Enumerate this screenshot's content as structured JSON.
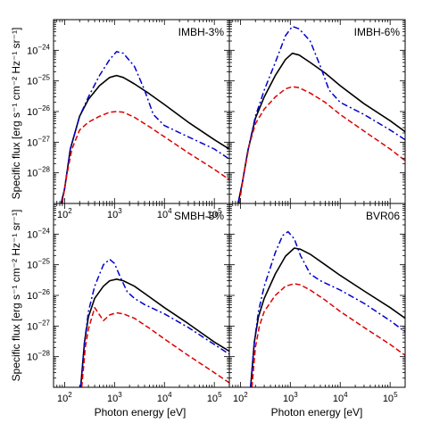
{
  "figure": {
    "xlabel": "Photon energy [eV]",
    "ylabel": "Specific flux [erg s⁻¹ cm⁻² Hz⁻¹ sr⁻¹]"
  },
  "chart_data": [
    {
      "type": "line",
      "panel_label": "IMBH-3%",
      "xscale": "log",
      "yscale": "log",
      "xlim": [
        60,
        200000
      ],
      "ylim": [
        1e-29,
        1e-23
      ],
      "xlabel": "",
      "ylabel": "Specific flux [erg s⁻¹ cm⁻² Hz⁻¹ sr⁻¹]",
      "x_ticks": [
        "10^2",
        "10^3",
        "10^4",
        "10^5"
      ],
      "y_ticks": [
        "10^-24",
        "10^-25",
        "10^-26",
        "10^-27",
        "10^-28"
      ],
      "series": [
        {
          "style": "solid",
          "color": "#000000",
          "x": [
            85,
            100,
            130,
            200,
            300,
            500,
            800,
            1100,
            1500,
            2500,
            5000,
            10000,
            30000,
            100000,
            200000
          ],
          "y": [
            1e-29,
            3e-29,
            6e-28,
            7e-27,
            2.5e-26,
            7e-26,
            1.3e-25,
            1.5e-25,
            1.3e-25,
            8e-26,
            3.8e-26,
            1.7e-26,
            4.5e-27,
            1.2e-27,
            6e-28
          ]
        },
        {
          "style": "dashdot",
          "color": "#0000cc",
          "x": [
            85,
            100,
            130,
            200,
            300,
            500,
            800,
            1100,
            1500,
            2500,
            4000,
            6000,
            10000,
            30000,
            100000,
            200000
          ],
          "y": [
            1e-29,
            3e-29,
            6e-28,
            7e-27,
            3e-26,
            1.5e-25,
            5e-25,
            9e-25,
            8e-25,
            3e-25,
            5e-26,
            8e-27,
            3.5e-27,
            1.5e-27,
            6e-28,
            2.8e-28
          ]
        },
        {
          "style": "dashed",
          "color": "#dd0000",
          "x": [
            90,
            110,
            140,
            200,
            300,
            500,
            800,
            1100,
            1500,
            2500,
            5000,
            10000,
            30000,
            100000,
            200000
          ],
          "y": [
            1e-29,
            8e-29,
            6e-28,
            2.5e-27,
            4.5e-27,
            7e-27,
            9.5e-27,
            1e-26,
            9.5e-27,
            6.5e-27,
            3.2e-27,
            1.5e-27,
            4.5e-28,
            1.3e-28,
            6e-29
          ]
        }
      ]
    },
    {
      "type": "line",
      "panel_label": "IMBH-6%",
      "xscale": "log",
      "yscale": "log",
      "xlim": [
        60,
        200000
      ],
      "ylim": [
        1e-29,
        1e-23
      ],
      "xlabel": "",
      "ylabel": "",
      "x_ticks": [],
      "y_ticks": [],
      "series": [
        {
          "style": "solid",
          "color": "#000000",
          "x": [
            90,
            110,
            140,
            200,
            300,
            500,
            800,
            1100,
            1500,
            2500,
            5000,
            10000,
            30000,
            100000,
            200000
          ],
          "y": [
            1e-29,
            5e-29,
            5e-28,
            6e-27,
            3e-26,
            1.5e-25,
            5e-25,
            8e-25,
            7e-25,
            4e-25,
            1.8e-25,
            7e-26,
            1.8e-26,
            5e-27,
            2.2e-27
          ]
        },
        {
          "style": "dashdot",
          "color": "#0000cc",
          "x": [
            90,
            110,
            140,
            200,
            300,
            500,
            800,
            1100,
            1500,
            2500,
            4000,
            6000,
            10000,
            30000,
            100000,
            200000
          ],
          "y": [
            1e-29,
            5e-29,
            5e-28,
            7e-27,
            5e-26,
            4e-25,
            3e-24,
            6e-24,
            5e-24,
            2e-24,
            3e-25,
            5e-26,
            2e-26,
            8e-27,
            2.5e-27,
            1.2e-27
          ]
        },
        {
          "style": "dashed",
          "color": "#dd0000",
          "x": [
            95,
            115,
            150,
            200,
            300,
            500,
            800,
            1100,
            1500,
            2500,
            5000,
            10000,
            30000,
            100000,
            200000
          ],
          "y": [
            1e-29,
            8e-29,
            8e-28,
            4e-27,
            1.2e-26,
            3e-26,
            5.5e-26,
            6.5e-26,
            6e-26,
            4e-26,
            2e-26,
            8e-27,
            2.3e-27,
            6e-28,
            2.5e-28
          ]
        }
      ]
    },
    {
      "type": "line",
      "panel_label": "SMBH-3%",
      "xscale": "log",
      "yscale": "log",
      "xlim": [
        60,
        200000
      ],
      "ylim": [
        1e-29,
        1e-23
      ],
      "xlabel": "Photon energy [eV]",
      "ylabel": "Specific flux [erg s⁻¹ cm⁻² Hz⁻¹ sr⁻¹]",
      "x_ticks": [
        "10^2",
        "10^3",
        "10^4",
        "10^5"
      ],
      "y_ticks": [
        "10^-24",
        "10^-25",
        "10^-26",
        "10^-27",
        "10^-28"
      ],
      "series": [
        {
          "style": "solid",
          "color": "#000000",
          "x": [
            210,
            250,
            300,
            400,
            600,
            800,
            1100,
            1500,
            2500,
            5000,
            10000,
            30000,
            100000,
            200000
          ],
          "y": [
            1e-29,
            3e-28,
            2e-27,
            8e-27,
            2e-26,
            3e-26,
            3.4e-26,
            3e-26,
            2e-26,
            9e-27,
            4e-27,
            1.2e-27,
            3e-28,
            1.5e-28
          ]
        },
        {
          "style": "dashdot",
          "color": "#0000cc",
          "x": [
            210,
            250,
            300,
            400,
            600,
            800,
            1000,
            1300,
            1800,
            2500,
            4000,
            10000,
            30000,
            100000,
            200000
          ],
          "y": [
            1e-29,
            3e-28,
            3e-27,
            2e-26,
            1e-25,
            1.5e-25,
            1.1e-25,
            4e-26,
            1.3e-26,
            8e-27,
            5e-27,
            2.5e-27,
            9e-28,
            2.5e-28,
            1.2e-28
          ]
        },
        {
          "style": "dashed",
          "color": "#dd0000",
          "x": [
            220,
            260,
            300,
            400,
            600,
            800,
            1100,
            1500,
            2500,
            5000,
            10000,
            30000,
            100000,
            200000
          ],
          "y": [
            1e-29,
            2e-28,
            8e-28,
            4e-27,
            1.5e-27,
            2.3e-27,
            2.7e-27,
            2.5e-27,
            1.8e-27,
            8.5e-28,
            3.8e-28,
            1.1e-28,
            3e-29,
            1.4e-29
          ]
        }
      ]
    },
    {
      "type": "line",
      "panel_label": "BVR06",
      "xscale": "log",
      "yscale": "log",
      "xlim": [
        60,
        200000
      ],
      "ylim": [
        1e-29,
        1e-23
      ],
      "xlabel": "Photon energy [eV]",
      "ylabel": "",
      "x_ticks": [
        "10^2",
        "10^3",
        "10^4",
        "10^5"
      ],
      "y_ticks": [],
      "series": [
        {
          "style": "solid",
          "color": "#000000",
          "x": [
            160,
            190,
            230,
            300,
            500,
            800,
            1200,
            1600,
            2500,
            5000,
            10000,
            30000,
            100000,
            200000
          ],
          "y": [
            1e-29,
            3e-28,
            2e-27,
            8e-27,
            5e-26,
            1.9e-25,
            3.5e-25,
            3.2e-25,
            2.2e-25,
            1e-25,
            4.5e-26,
            1.4e-26,
            4e-27,
            1.8e-27
          ]
        },
        {
          "style": "dashdot",
          "color": "#0000cc",
          "x": [
            160,
            190,
            230,
            300,
            500,
            700,
            900,
            1200,
            1600,
            2500,
            4000,
            10000,
            30000,
            100000,
            200000
          ],
          "y": [
            1e-29,
            3e-28,
            3e-27,
            2e-26,
            2.5e-25,
            9e-25,
            1.2e-24,
            7e-25,
            2e-25,
            5e-26,
            3e-26,
            1.5e-26,
            5.5e-27,
            1.5e-27,
            6.5e-28
          ]
        },
        {
          "style": "dashed",
          "color": "#dd0000",
          "x": [
            170,
            200,
            240,
            300,
            500,
            800,
            1200,
            1600,
            2500,
            5000,
            10000,
            30000,
            100000,
            200000
          ],
          "y": [
            1e-29,
            2e-28,
            1e-27,
            3e-27,
            1e-26,
            2e-26,
            2.4e-26,
            2.2e-26,
            1.5e-26,
            7e-27,
            3e-27,
            9e-28,
            2.5e-28,
            1.1e-28
          ]
        }
      ]
    }
  ]
}
